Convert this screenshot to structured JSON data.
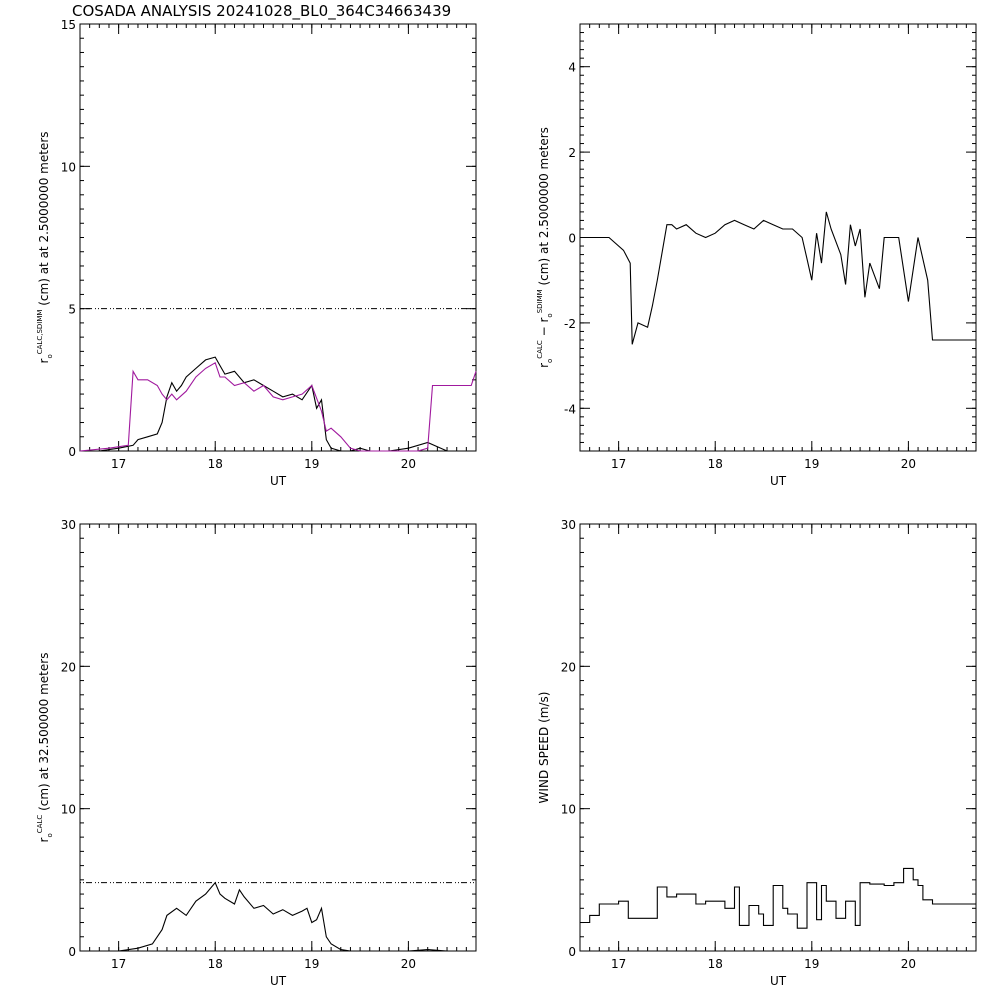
{
  "title": "COSADA ANALYSIS 20241028_BL0_364C34663439",
  "colors": {
    "black": "#000000",
    "magenta": "#a0199e"
  },
  "chart_data": [
    {
      "type": "line",
      "xlabel": "UT",
      "ylabel_parts": {
        "r": "r",
        "sub": "o",
        "sup": "CALC,SDIMM",
        "rest": "(cm)  at   at 2.5000000 meters"
      },
      "xlim": [
        16.6,
        20.7
      ],
      "ylim": [
        0,
        15
      ],
      "xticks": [
        17,
        18,
        19,
        20
      ],
      "yticks": [
        0,
        5,
        10,
        15
      ],
      "hline": 5,
      "series": [
        {
          "color": "#000000",
          "x": [
            16.6,
            16.8,
            17.0,
            17.15,
            17.2,
            17.3,
            17.4,
            17.45,
            17.5,
            17.55,
            17.6,
            17.65,
            17.7,
            17.8,
            17.9,
            18.0,
            18.05,
            18.1,
            18.2,
            18.3,
            18.4,
            18.5,
            18.6,
            18.7,
            18.8,
            18.9,
            19.0,
            19.05,
            19.1,
            19.15,
            19.2,
            19.3,
            19.4,
            19.5,
            19.6,
            19.8,
            20.0,
            20.2,
            20.4,
            20.6,
            20.7
          ],
          "y": [
            0.0,
            0.0,
            0.1,
            0.2,
            0.4,
            0.5,
            0.6,
            1.0,
            1.9,
            2.4,
            2.1,
            2.3,
            2.6,
            2.9,
            3.2,
            3.3,
            3.0,
            2.7,
            2.8,
            2.4,
            2.5,
            2.3,
            2.1,
            1.9,
            2.0,
            1.8,
            2.3,
            1.5,
            1.8,
            0.4,
            0.1,
            0.0,
            0.0,
            0.1,
            0.0,
            0.0,
            0.1,
            0.3,
            0.0,
            0.0,
            0.0
          ]
        },
        {
          "color": "#a0199e",
          "x": [
            16.6,
            16.9,
            17.1,
            17.15,
            17.2,
            17.3,
            17.4,
            17.45,
            17.5,
            17.55,
            17.6,
            17.7,
            17.8,
            17.9,
            18.0,
            18.05,
            18.1,
            18.2,
            18.3,
            18.4,
            18.5,
            18.6,
            18.7,
            18.8,
            18.9,
            19.0,
            19.1,
            19.15,
            19.2,
            19.3,
            19.4,
            19.5,
            19.6,
            19.7,
            19.8,
            19.9,
            20.0,
            20.1,
            20.2,
            20.25,
            20.6,
            20.65,
            20.7
          ],
          "y": [
            0.0,
            0.1,
            0.2,
            2.8,
            2.5,
            2.5,
            2.3,
            2.0,
            1.8,
            2.0,
            1.8,
            2.1,
            2.6,
            2.9,
            3.1,
            2.6,
            2.6,
            2.3,
            2.4,
            2.1,
            2.3,
            1.9,
            1.8,
            1.9,
            2.0,
            2.3,
            1.4,
            0.7,
            0.8,
            0.5,
            0.1,
            0.0,
            0.0,
            0.0,
            0.0,
            0.0,
            0.0,
            0.0,
            0.1,
            2.3,
            2.3,
            2.3,
            2.8
          ]
        }
      ]
    },
    {
      "type": "line",
      "xlabel": "UT",
      "ylabel_parts": {
        "r1": "r",
        "sub1": "o",
        "sup1": "CALC",
        "mid": "  − r",
        "sub2": "o",
        "sup2": "SDIMM",
        "rest": "(cm) at 2.5000000 meters"
      },
      "xlim": [
        16.6,
        20.7
      ],
      "ylim": [
        -5,
        5
      ],
      "xticks": [
        17,
        18,
        19,
        20
      ],
      "yticks": [
        -4,
        -2,
        0,
        2,
        4
      ],
      "series": [
        {
          "color": "#000000",
          "x": [
            16.6,
            16.9,
            17.05,
            17.12,
            17.14,
            17.2,
            17.3,
            17.35,
            17.4,
            17.5,
            17.55,
            17.6,
            17.7,
            17.8,
            17.9,
            18.0,
            18.1,
            18.2,
            18.3,
            18.4,
            18.5,
            18.6,
            18.7,
            18.8,
            18.9,
            18.95,
            19.0,
            19.05,
            19.1,
            19.15,
            19.2,
            19.3,
            19.35,
            19.4,
            19.45,
            19.5,
            19.55,
            19.6,
            19.7,
            19.75,
            19.8,
            19.9,
            20.0,
            20.1,
            20.2,
            20.25,
            20.5,
            20.7
          ],
          "y": [
            0.0,
            0.0,
            -0.3,
            -0.6,
            -2.5,
            -2.0,
            -2.1,
            -1.6,
            -1.0,
            0.3,
            0.3,
            0.2,
            0.3,
            0.1,
            0.0,
            0.1,
            0.3,
            0.4,
            0.3,
            0.2,
            0.4,
            0.3,
            0.2,
            0.2,
            0.0,
            -0.5,
            -1.0,
            0.1,
            -0.6,
            0.6,
            0.2,
            -0.4,
            -1.1,
            0.3,
            -0.2,
            0.2,
            -1.4,
            -0.6,
            -1.2,
            0.0,
            0.0,
            0.0,
            -1.5,
            0.0,
            -1.0,
            -2.4,
            -2.4,
            -2.4
          ]
        }
      ]
    },
    {
      "type": "line",
      "xlabel": "UT",
      "ylabel_parts": {
        "r": "r",
        "sub": "o",
        "sup": "CALC",
        "rest": "(cm) at 32.500000 meters"
      },
      "xlim": [
        16.6,
        20.7
      ],
      "ylim": [
        0,
        30
      ],
      "xticks": [
        17,
        18,
        19,
        20
      ],
      "yticks": [
        0,
        10,
        20,
        30
      ],
      "hline": 4.8,
      "series": [
        {
          "color": "#000000",
          "x": [
            16.6,
            16.8,
            17.0,
            17.2,
            17.35,
            17.45,
            17.5,
            17.6,
            17.7,
            17.8,
            17.9,
            18.0,
            18.05,
            18.1,
            18.2,
            18.25,
            18.3,
            18.4,
            18.5,
            18.6,
            18.7,
            18.8,
            18.9,
            18.95,
            19.0,
            19.05,
            19.1,
            19.15,
            19.2,
            19.3,
            19.4,
            19.6,
            19.8,
            20.0,
            20.2,
            20.4,
            20.7
          ],
          "y": [
            0.0,
            0.0,
            0.0,
            0.2,
            0.5,
            1.5,
            2.5,
            3.0,
            2.5,
            3.5,
            4.0,
            4.8,
            4.0,
            3.7,
            3.3,
            4.3,
            3.8,
            3.0,
            3.2,
            2.6,
            2.9,
            2.5,
            2.8,
            3.0,
            2.0,
            2.2,
            3.0,
            1.0,
            0.5,
            0.1,
            0.0,
            0.0,
            0.0,
            0.0,
            0.1,
            0.0,
            0.0
          ]
        }
      ]
    },
    {
      "type": "line",
      "xlabel": "UT",
      "ylabel": "WIND SPEED  (m/s)",
      "xlim": [
        16.6,
        20.7
      ],
      "ylim": [
        0,
        30
      ],
      "xticks": [
        17,
        18,
        19,
        20
      ],
      "yticks": [
        0,
        10,
        20,
        30
      ],
      "step": true,
      "series": [
        {
          "color": "#000000",
          "x": [
            16.6,
            16.7,
            16.8,
            17.0,
            17.1,
            17.4,
            17.5,
            17.6,
            17.8,
            17.9,
            18.0,
            18.1,
            18.2,
            18.25,
            18.35,
            18.45,
            18.5,
            18.6,
            18.7,
            18.75,
            18.85,
            18.95,
            19.05,
            19.1,
            19.15,
            19.25,
            19.35,
            19.45,
            19.5,
            19.6,
            19.75,
            19.85,
            19.95,
            20.05,
            20.1,
            20.15,
            20.25,
            20.7
          ],
          "y": [
            2.0,
            2.5,
            3.3,
            3.5,
            2.3,
            4.5,
            3.8,
            4.0,
            3.3,
            3.5,
            3.5,
            3.0,
            4.5,
            1.8,
            3.2,
            2.6,
            1.8,
            4.6,
            3.0,
            2.6,
            1.6,
            4.8,
            2.2,
            4.6,
            3.5,
            2.3,
            3.5,
            1.8,
            4.8,
            4.7,
            4.6,
            4.8,
            5.8,
            5.0,
            4.6,
            3.6,
            3.3,
            3.3
          ]
        }
      ]
    }
  ]
}
